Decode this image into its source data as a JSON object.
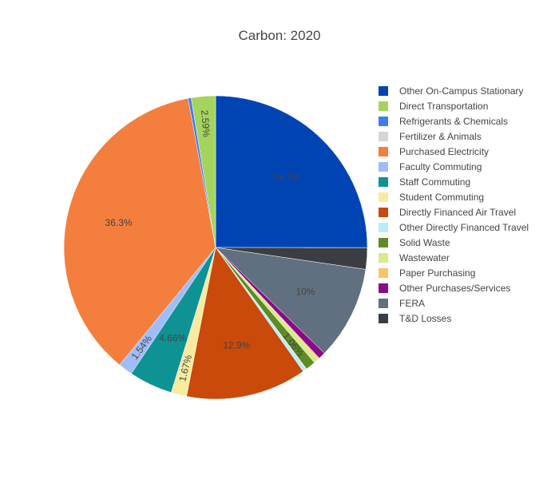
{
  "chart_data": {
    "type": "pie",
    "title": "Carbon: 2020",
    "legend_position": "right",
    "slices": [
      {
        "label": "Other On-Campus Stationary",
        "value": 25.1,
        "text": "25.1%",
        "color": "#0044b4"
      },
      {
        "label": "T&D Losses",
        "value": 2.3,
        "text": "",
        "color": "#3a3d44"
      },
      {
        "label": "FERA",
        "value": 10.0,
        "text": "10%",
        "color": "#617080"
      },
      {
        "label": "Other Purchases/Services",
        "value": 0.75,
        "text": "",
        "color": "#8b0a8b"
      },
      {
        "label": "Paper Purchasing",
        "value": 0.15,
        "text": "",
        "color": "#f9c366"
      },
      {
        "label": "Wastewater",
        "value": 0.55,
        "text": "",
        "color": "#d9ea8c"
      },
      {
        "label": "Solid Waste",
        "value": 1.06,
        "text": "1.06%",
        "color": "#5f8a24"
      },
      {
        "label": "Fertilizer & Animals",
        "value": 0.04,
        "text": "",
        "color": "#d6d6d6"
      },
      {
        "label": "Other Directly Financed Travel",
        "value": 0.4,
        "text": "",
        "color": "#b7eef8"
      },
      {
        "label": "Directly Financed Air Travel",
        "value": 12.9,
        "text": "12.9%",
        "color": "#c94a0a"
      },
      {
        "label": "Student Commuting",
        "value": 1.67,
        "text": "1.67%",
        "color": "#f7eb9f"
      },
      {
        "label": "Staff Commuting",
        "value": 4.66,
        "text": "4.66%",
        "color": "#0f9293"
      },
      {
        "label": "Faculty Commuting",
        "value": 1.54,
        "text": "1.54%",
        "color": "#9fbdfb"
      },
      {
        "label": "Purchased Electricity",
        "value": 36.3,
        "text": "36.3%",
        "color": "#f47e3e"
      },
      {
        "label": "Refrigerants & Chemicals",
        "value": 0.33,
        "text": "",
        "color": "#3c7df1"
      },
      {
        "label": "Direct Transportation",
        "value": 2.59,
        "text": "2.59%",
        "color": "#a5d45e"
      }
    ],
    "legend": [
      {
        "label": "Other On-Campus Stationary",
        "color": "#0044b4"
      },
      {
        "label": "Direct Transportation",
        "color": "#a5d45e"
      },
      {
        "label": "Refrigerants & Chemicals",
        "color": "#3c7df1"
      },
      {
        "label": "Fertilizer & Animals",
        "color": "#d6d6d6"
      },
      {
        "label": "Purchased Electricity",
        "color": "#f47e3e"
      },
      {
        "label": "Faculty Commuting",
        "color": "#9fbdfb"
      },
      {
        "label": "Staff Commuting",
        "color": "#0f9293"
      },
      {
        "label": "Student Commuting",
        "color": "#f7eb9f"
      },
      {
        "label": "Directly Financed Air Travel",
        "color": "#c94a0a"
      },
      {
        "label": "Other Directly Financed Travel",
        "color": "#b7eef8"
      },
      {
        "label": "Solid Waste",
        "color": "#5f8a24"
      },
      {
        "label": "Wastewater",
        "color": "#d9ea8c"
      },
      {
        "label": "Paper Purchasing",
        "color": "#f9c366"
      },
      {
        "label": "Other Purchases/Services",
        "color": "#8b0a8b"
      },
      {
        "label": "FERA",
        "color": "#617080"
      },
      {
        "label": "T&D Losses",
        "color": "#3a3d44"
      }
    ]
  }
}
